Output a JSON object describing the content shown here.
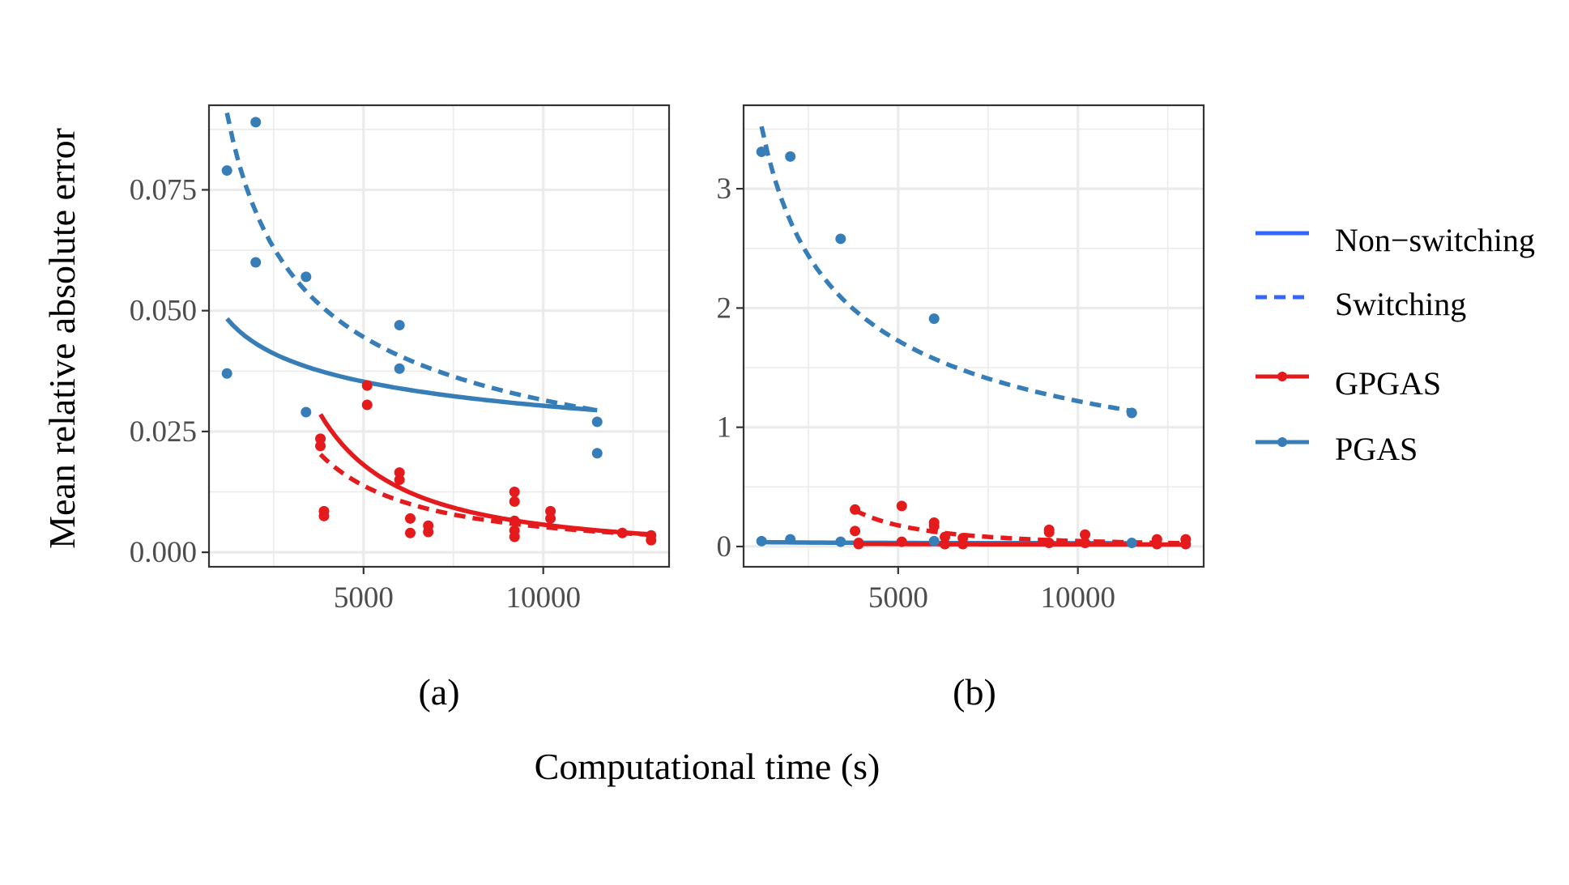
{
  "chart_data": {
    "type": "scatter",
    "ylabel": "Mean relative absolute error",
    "xlabel": "Computational time (s)",
    "legend": {
      "placement": "right",
      "linetype_entries": [
        {
          "label": "Non−switching",
          "linetype": "solid"
        },
        {
          "label": "Switching",
          "linetype": "dashed"
        }
      ],
      "color_entries": [
        {
          "label": "GPGAS",
          "color": "#e41a1c"
        },
        {
          "label": "PGAS",
          "color": "#377eb8"
        }
      ]
    },
    "colors": {
      "GPGAS": "#e41a1c",
      "PGAS": "#377eb8",
      "legend_line": "#3366ff"
    },
    "panels": [
      {
        "label": "(a)",
        "xlim": [
          700,
          13500
        ],
        "ylim": [
          -0.003,
          0.0925
        ],
        "xticks": [
          5000,
          10000
        ],
        "xtick_labels": [
          "5000",
          "10000"
        ],
        "yticks": [
          0,
          0.025,
          0.05,
          0.075
        ],
        "ytick_labels": [
          "0.000",
          "0.025",
          "0.050",
          "0.075"
        ],
        "series": [
          {
            "name": "PGAS",
            "color": "#377eb8",
            "points": [
              [
                1200,
                0.079
              ],
              [
                1200,
                0.037
              ],
              [
                2000,
                0.089
              ],
              [
                2000,
                0.06
              ],
              [
                3400,
                0.057
              ],
              [
                3400,
                0.029
              ],
              [
                6000,
                0.047
              ],
              [
                6000,
                0.038
              ],
              [
                11500,
                0.027
              ],
              [
                11500,
                0.0205
              ]
            ],
            "fits": [
              {
                "linetype": "solid",
                "x": [
                  1200,
                  11500
                ],
                "model": "power",
                "a": 0.23,
                "b": -0.22
              },
              {
                "linetype": "dashed",
                "x": [
                  1200,
                  11500
                ],
                "model": "power",
                "a": 3.15,
                "b": -0.5
              }
            ]
          },
          {
            "name": "GPGAS",
            "color": "#e41a1c",
            "points": [
              [
                3800,
                0.0235
              ],
              [
                3800,
                0.022
              ],
              [
                3900,
                0.0085
              ],
              [
                3900,
                0.0075
              ],
              [
                5100,
                0.0345
              ],
              [
                5100,
                0.0305
              ],
              [
                6000,
                0.0165
              ],
              [
                6000,
                0.015
              ],
              [
                6300,
                0.007
              ],
              [
                6300,
                0.004
              ],
              [
                6800,
                0.0055
              ],
              [
                6800,
                0.0042
              ],
              [
                9200,
                0.0125
              ],
              [
                9200,
                0.0105
              ],
              [
                9200,
                0.0065
              ],
              [
                9200,
                0.0045
              ],
              [
                9200,
                0.0032
              ],
              [
                10200,
                0.0085
              ],
              [
                10200,
                0.007
              ],
              [
                12200,
                0.004
              ],
              [
                13000,
                0.0035
              ],
              [
                13000,
                0.0025
              ]
            ],
            "fits": [
              {
                "linetype": "solid",
                "x": [
                  3800,
                  13000
                ],
                "model": "power",
                "a": 25000,
                "b": -1.66
              },
              {
                "linetype": "dashed",
                "x": [
                  3800,
                  13000
                ],
                "model": "power",
                "a": 2080,
                "b": -1.4
              }
            ]
          }
        ]
      },
      {
        "label": "(b)",
        "xlim": [
          700,
          13500
        ],
        "ylim": [
          -0.17,
          3.7
        ],
        "xticks": [
          5000,
          10000
        ],
        "xtick_labels": [
          "5000",
          "10000"
        ],
        "yticks": [
          0,
          1,
          2,
          3
        ],
        "ytick_labels": [
          "0",
          "1",
          "2",
          "3"
        ],
        "series": [
          {
            "name": "PGAS",
            "color": "#377eb8",
            "points": [
              [
                1200,
                3.31
              ],
              [
                1200,
                0.045
              ],
              [
                2000,
                3.27
              ],
              [
                2000,
                0.06
              ],
              [
                3400,
                2.58
              ],
              [
                3400,
                0.04
              ],
              [
                6000,
                1.91
              ],
              [
                6000,
                0.045
              ],
              [
                11500,
                1.12
              ],
              [
                11500,
                0.03
              ]
            ],
            "fits": [
              {
                "linetype": "solid",
                "x": [
                  1200,
                  11500
                ],
                "model": "power",
                "a": 0.1,
                "b": -0.14
              },
              {
                "linetype": "dashed",
                "x": [
                  1200,
                  11500
                ],
                "model": "power",
                "a": 122,
                "b": -0.5
              }
            ]
          },
          {
            "name": "GPGAS",
            "color": "#e41a1c",
            "points": [
              [
                3800,
                0.31
              ],
              [
                3800,
                0.13
              ],
              [
                3900,
                0.03
              ],
              [
                3900,
                0.02
              ],
              [
                5100,
                0.34
              ],
              [
                5100,
                0.04
              ],
              [
                6000,
                0.2
              ],
              [
                6000,
                0.17
              ],
              [
                6300,
                0.08
              ],
              [
                6300,
                0.02
              ],
              [
                6800,
                0.07
              ],
              [
                6800,
                0.02
              ],
              [
                9200,
                0.14
              ],
              [
                9200,
                0.12
              ],
              [
                9200,
                0.03
              ],
              [
                10200,
                0.1
              ],
              [
                10200,
                0.03
              ],
              [
                12200,
                0.06
              ],
              [
                12200,
                0.02
              ],
              [
                13000,
                0.06
              ],
              [
                13000,
                0.02
              ]
            ],
            "fits": [
              {
                "linetype": "solid",
                "x": [
                  3800,
                  13000
                ],
                "model": "power",
                "a": 0.135,
                "b": -0.22
              },
              {
                "linetype": "dashed",
                "x": [
                  3800,
                  13000
                ],
                "model": "power",
                "a": 2900000.0,
                "b": -1.95
              }
            ]
          }
        ]
      }
    ]
  }
}
